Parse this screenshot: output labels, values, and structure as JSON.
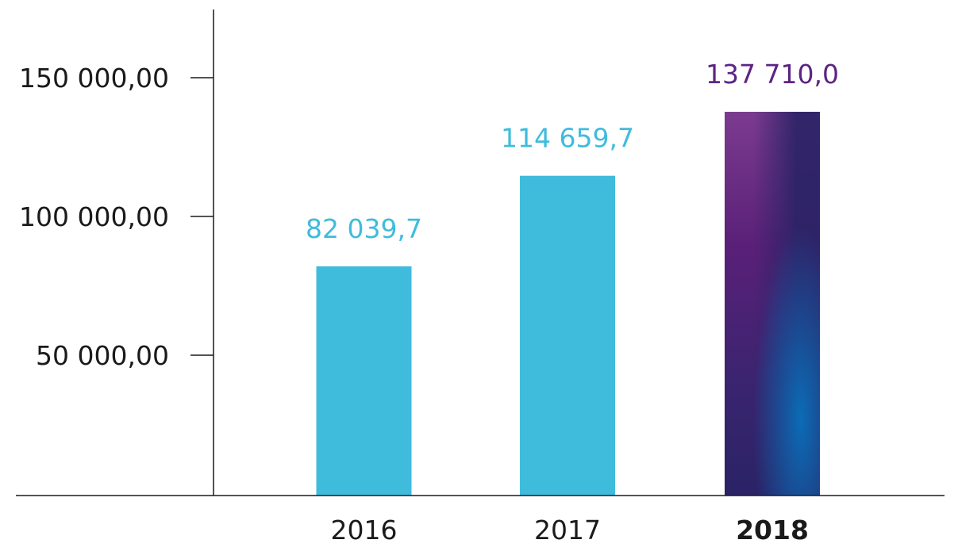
{
  "chart_data": {
    "type": "bar",
    "categories": [
      "2016",
      "2017",
      "2018"
    ],
    "values": [
      82039.7,
      114659.7,
      137710.0
    ],
    "value_labels": [
      "82 039,7",
      "114 659,7",
      "137 710,0"
    ],
    "highlight_category": "2018",
    "y_ticks": [
      50000,
      100000,
      150000
    ],
    "y_tick_labels": [
      "50 000,00",
      "100 000,00",
      "150 000,00"
    ],
    "ylim": [
      0,
      174000
    ],
    "title": "",
    "xlabel": "",
    "ylabel": "",
    "grid": false,
    "colors": {
      "bar": "#3fbcdc",
      "highlight_label": "#5c2483",
      "highlight_gradient": [
        "#7b3b8f",
        "#5a2078",
        "#2a2366",
        "#0b6cb6"
      ],
      "axis": "#1a1a1a"
    }
  }
}
